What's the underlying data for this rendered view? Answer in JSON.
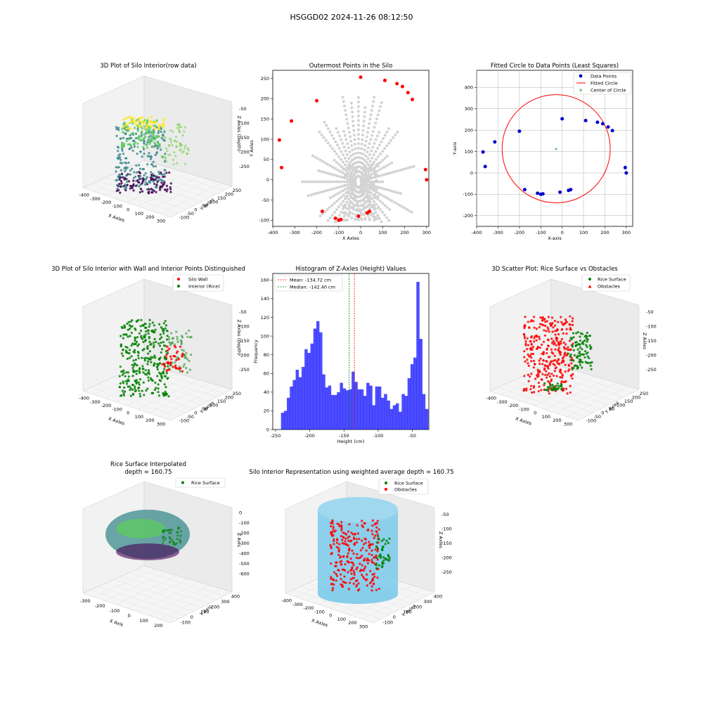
{
  "suptitle": "HSGGD02 2024-11-26 08:12:50",
  "panels": {
    "p1": {
      "title": "3D Plot of Silo Interior(row data)",
      "xlabel": "X Axles",
      "ylabel": "Y Axles",
      "zlabel": "Z Axles (Depth)",
      "xticks": [
        "-400",
        "-300",
        "-200",
        "-100",
        "0",
        "100",
        "200",
        "300"
      ],
      "yticks": [
        "-100",
        "-50",
        "0",
        "50",
        "100",
        "150",
        "200",
        "250"
      ],
      "zticks": [
        "-50",
        "-100",
        "-150",
        "-200",
        "-250"
      ]
    },
    "p2": {
      "title": "Outermost Points in the Silo",
      "xlabel": "X Axles",
      "ylabel": "Y Axles",
      "xticks": [
        "-400",
        "-300",
        "-200",
        "-100",
        "0",
        "100",
        "200",
        "300"
      ],
      "yticks": [
        "-100",
        "-50",
        "0",
        "50",
        "100",
        "150",
        "200",
        "250"
      ]
    },
    "p3": {
      "title": "Fitted Circle to Data Points (Least Squares)",
      "xlabel": "X-axis",
      "ylabel": "Y-axis",
      "xticks": [
        "-400",
        "-300",
        "-200",
        "-100",
        "0",
        "100",
        "200",
        "300"
      ],
      "yticks": [
        "-200",
        "-100",
        "0",
        "100",
        "200",
        "300",
        "400"
      ],
      "legend": [
        "Data Points",
        "Fitted Circle",
        "Center of Circle"
      ]
    },
    "p4": {
      "title": "3D Plot of Silo Interior with Wall and Interior Points Distinguished",
      "xlabel": "X Axles",
      "ylabel": "Y Axles",
      "zlabel": "Z Axles (Depth)",
      "xticks": [
        "-400",
        "-300",
        "-200",
        "-100",
        "0",
        "100",
        "200",
        "300"
      ],
      "yticks": [
        "-100",
        "-50",
        "0",
        "50",
        "100",
        "150",
        "200",
        "250"
      ],
      "zticks": [
        "-50",
        "-100",
        "-150",
        "-200",
        "-250"
      ],
      "legend": [
        "Silo Wall",
        "Interior (Rice)"
      ]
    },
    "p5": {
      "title": "Histogram of Z-Axles (Height) Values",
      "xlabel": "Height (cm)",
      "ylabel": "Frequency",
      "xticks": [
        "-250",
        "-200",
        "-150",
        "-100",
        "-50"
      ],
      "yticks": [
        "0",
        "20",
        "40",
        "60",
        "80",
        "100",
        "120",
        "140",
        "160"
      ],
      "legend": [
        "Mean: -134.72 cm",
        "Median: -142.40 cm"
      ]
    },
    "p6": {
      "title": "3D Scatter Plot: Rice Surface vs Obstacles",
      "xlabel": "X Axles",
      "ylabel": "Y Axles",
      "zlabel": "Z Axles",
      "xticks": [
        "-400",
        "-300",
        "-200",
        "-100",
        "0",
        "100",
        "200",
        "300"
      ],
      "yticks": [
        "-100",
        "-50",
        "0",
        "50",
        "100",
        "150",
        "200",
        "250"
      ],
      "zticks": [
        "-50",
        "-100",
        "-150",
        "-200",
        "-250"
      ],
      "legend": [
        "Rice Surface",
        "Obstacles"
      ]
    },
    "p7": {
      "title": "Rice Surface Interpolated",
      "title2": "depth = 160.75",
      "xlabel": "X Axis",
      "ylabel": "Y Axis",
      "zlabel": "Z Axis",
      "xticks": [
        "-300",
        "-200",
        "-100",
        "0",
        "100",
        "200"
      ],
      "yticks": [
        "-100",
        "0",
        "100",
        "200",
        "300",
        "400"
      ],
      "zticks": [
        "0",
        "-100",
        "-200",
        "-300",
        "-400",
        "-500",
        "-600"
      ],
      "legend": [
        "Rice Surface"
      ]
    },
    "p8": {
      "title": "Silo Interior Representation using weighted average depth = 160.75",
      "xlabel": "X Axles",
      "ylabel": "Y Axles",
      "zlabel": "Z Axles",
      "xticks": [
        "-400",
        "-300",
        "-200",
        "-100",
        "0",
        "100",
        "200",
        "300"
      ],
      "yticks": [
        "-100",
        "0",
        "100",
        "200",
        "300",
        "400"
      ],
      "zticks": [
        "-50",
        "-100",
        "-150",
        "-200",
        "-250"
      ],
      "legend": [
        "Rice Surface",
        "Obstacles"
      ]
    }
  },
  "colors": {
    "wall": "#ff0000",
    "rice": "#008000",
    "points": "#0000cd",
    "hist": "#0000ff",
    "gray": "#d3d3d3",
    "sky": "#87ceeb"
  },
  "chart_data": [
    {
      "type": "scatter",
      "id": "p2",
      "title": "Outermost Points in the Silo",
      "xlabel": "X Axles",
      "ylabel": "Y Axles",
      "xlim": [
        -400,
        310
      ],
      "ylim": [
        -115,
        270
      ],
      "series": [
        {
          "name": "",
          "x": [
            0,
            110,
            165,
            190,
            215,
            235,
            295,
            300,
            -370,
            -360,
            -315,
            -200,
            -175,
            -115,
            -100,
            -90,
            -10,
            30,
            40
          ],
          "y": [
            253,
            245,
            237,
            230,
            215,
            198,
            25,
            0,
            98,
            30,
            145,
            195,
            -78,
            -95,
            -100,
            -98,
            -90,
            -82,
            -78
          ]
        }
      ]
    },
    {
      "type": "scatter",
      "id": "p3",
      "title": "Fitted Circle to Data Points (Least Squares)",
      "xlabel": "X-axis",
      "ylabel": "Y-axis",
      "xlim": [
        -400,
        330
      ],
      "ylim": [
        -250,
        480
      ],
      "series": [
        {
          "name": "Data Points",
          "x": [
            0,
            110,
            165,
            190,
            215,
            235,
            295,
            300,
            -370,
            -360,
            -315,
            -200,
            -175,
            -115,
            -100,
            -90,
            -10,
            30,
            40
          ],
          "y": [
            253,
            245,
            237,
            230,
            215,
            198,
            25,
            0,
            98,
            30,
            145,
            195,
            -78,
            -95,
            -100,
            -98,
            -90,
            -82,
            -78
          ]
        }
      ],
      "circle": {
        "name": "Fitted Circle",
        "cx": -28,
        "cy": 113,
        "r": 253
      },
      "center": {
        "name": "Center of Circle",
        "x": -28,
        "y": 113
      }
    },
    {
      "type": "bar",
      "id": "p5",
      "title": "Histogram of Z-Axles (Height) Values",
      "xlabel": "Height (cm)",
      "ylabel": "Frequency",
      "bin_start": -242,
      "bin_width": 4.3,
      "xlim": [
        -254,
        -26
      ],
      "ylim": [
        0,
        167
      ],
      "values": [
        18,
        20,
        34,
        46,
        53,
        64,
        56,
        67,
        86,
        82,
        92,
        108,
        116,
        104,
        59,
        45,
        47,
        37,
        37,
        40,
        50,
        44,
        42,
        43,
        62,
        51,
        43,
        43,
        36,
        50,
        47,
        26,
        46,
        46,
        34,
        38,
        31,
        22,
        26,
        28,
        19,
        38,
        36,
        55,
        70,
        77,
        158,
        97,
        38,
        22
      ],
      "mean": -134.72,
      "median": -142.4
    }
  ]
}
